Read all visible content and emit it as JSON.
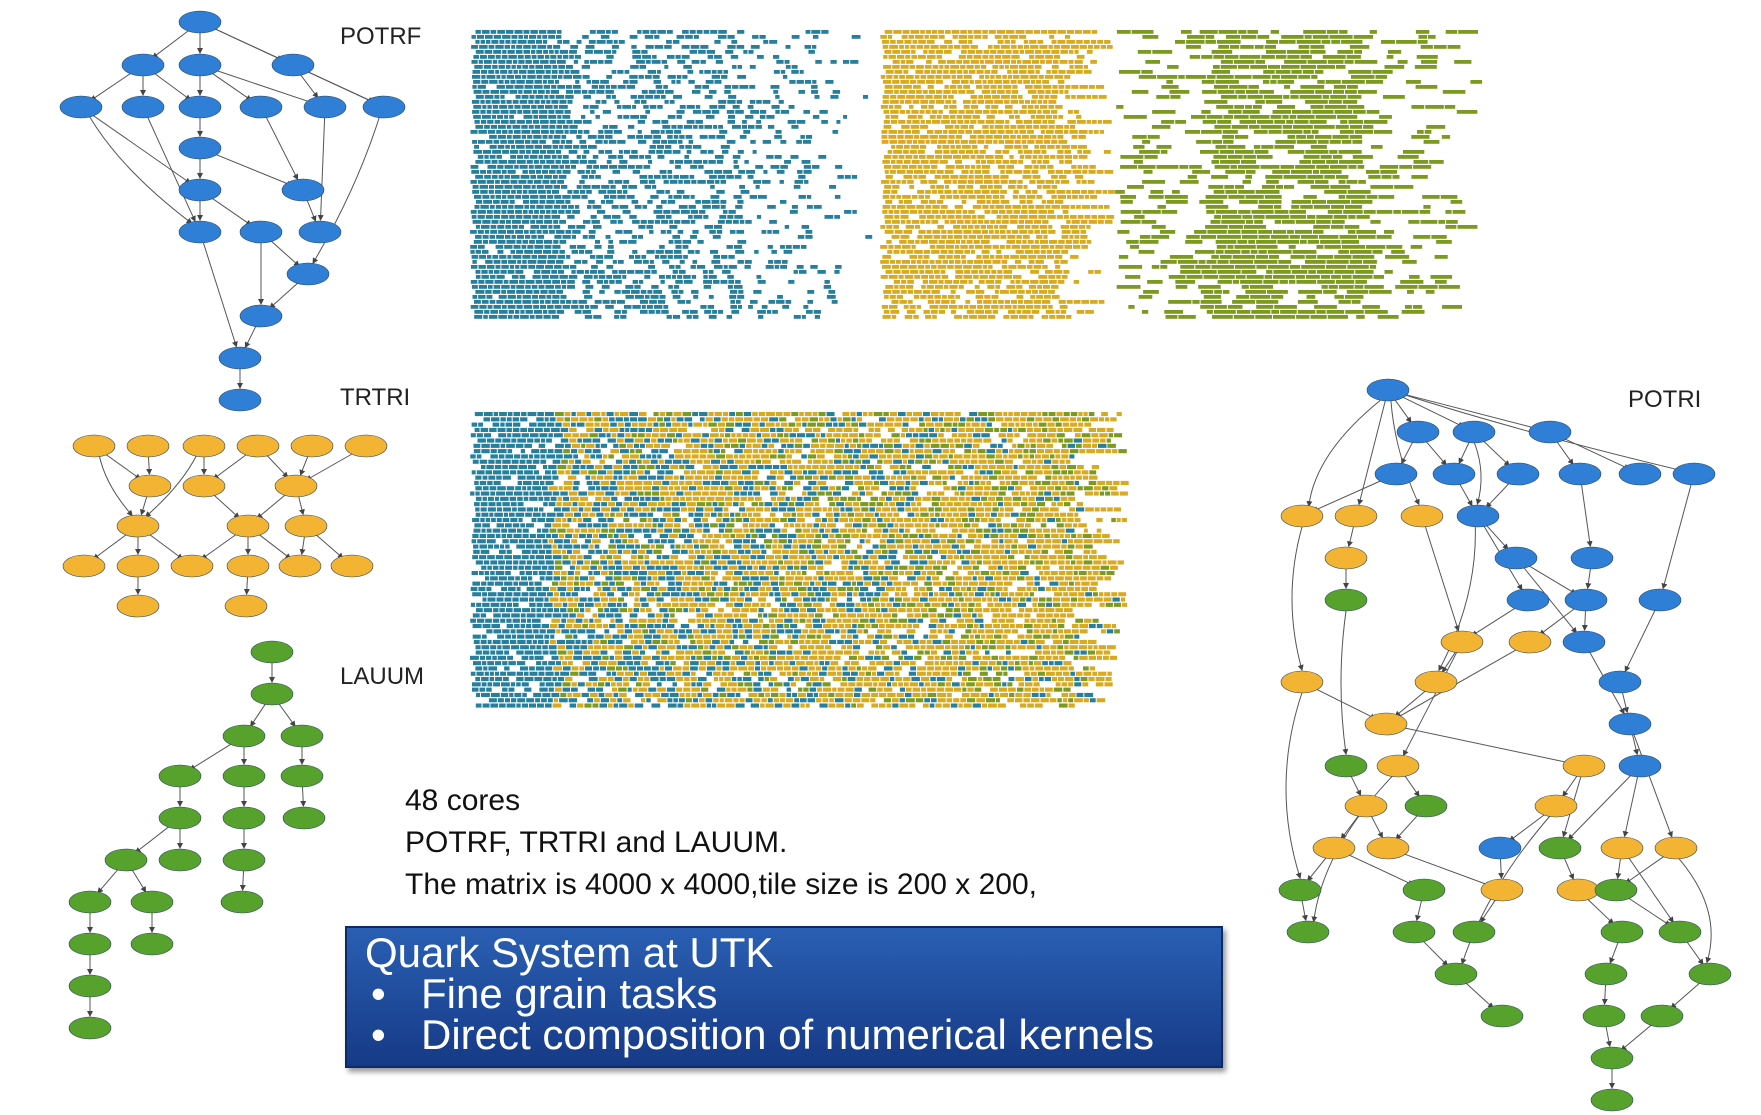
{
  "colors": {
    "blue": "#2f7fd6",
    "orange": "#f4b433",
    "green": "#57a22c",
    "teal": "#267f9c",
    "gold": "#d8aa22",
    "olive": "#7c9a1f"
  },
  "labels": {
    "potrf": "POTRF",
    "trtri": "TRTRI",
    "lauum": "LAUUM",
    "potri": "POTRI"
  },
  "info": {
    "cores": "48 cores",
    "kernels": "POTRF, TRTRI and LAUUM.",
    "matrix": "The matrix is 4000 x 4000,tile size is 200 x 200,"
  },
  "callout": {
    "title": "Quark System at UTK",
    "bullets": [
      "Fine grain tasks",
      "Direct composition of numerical kernels"
    ]
  }
}
